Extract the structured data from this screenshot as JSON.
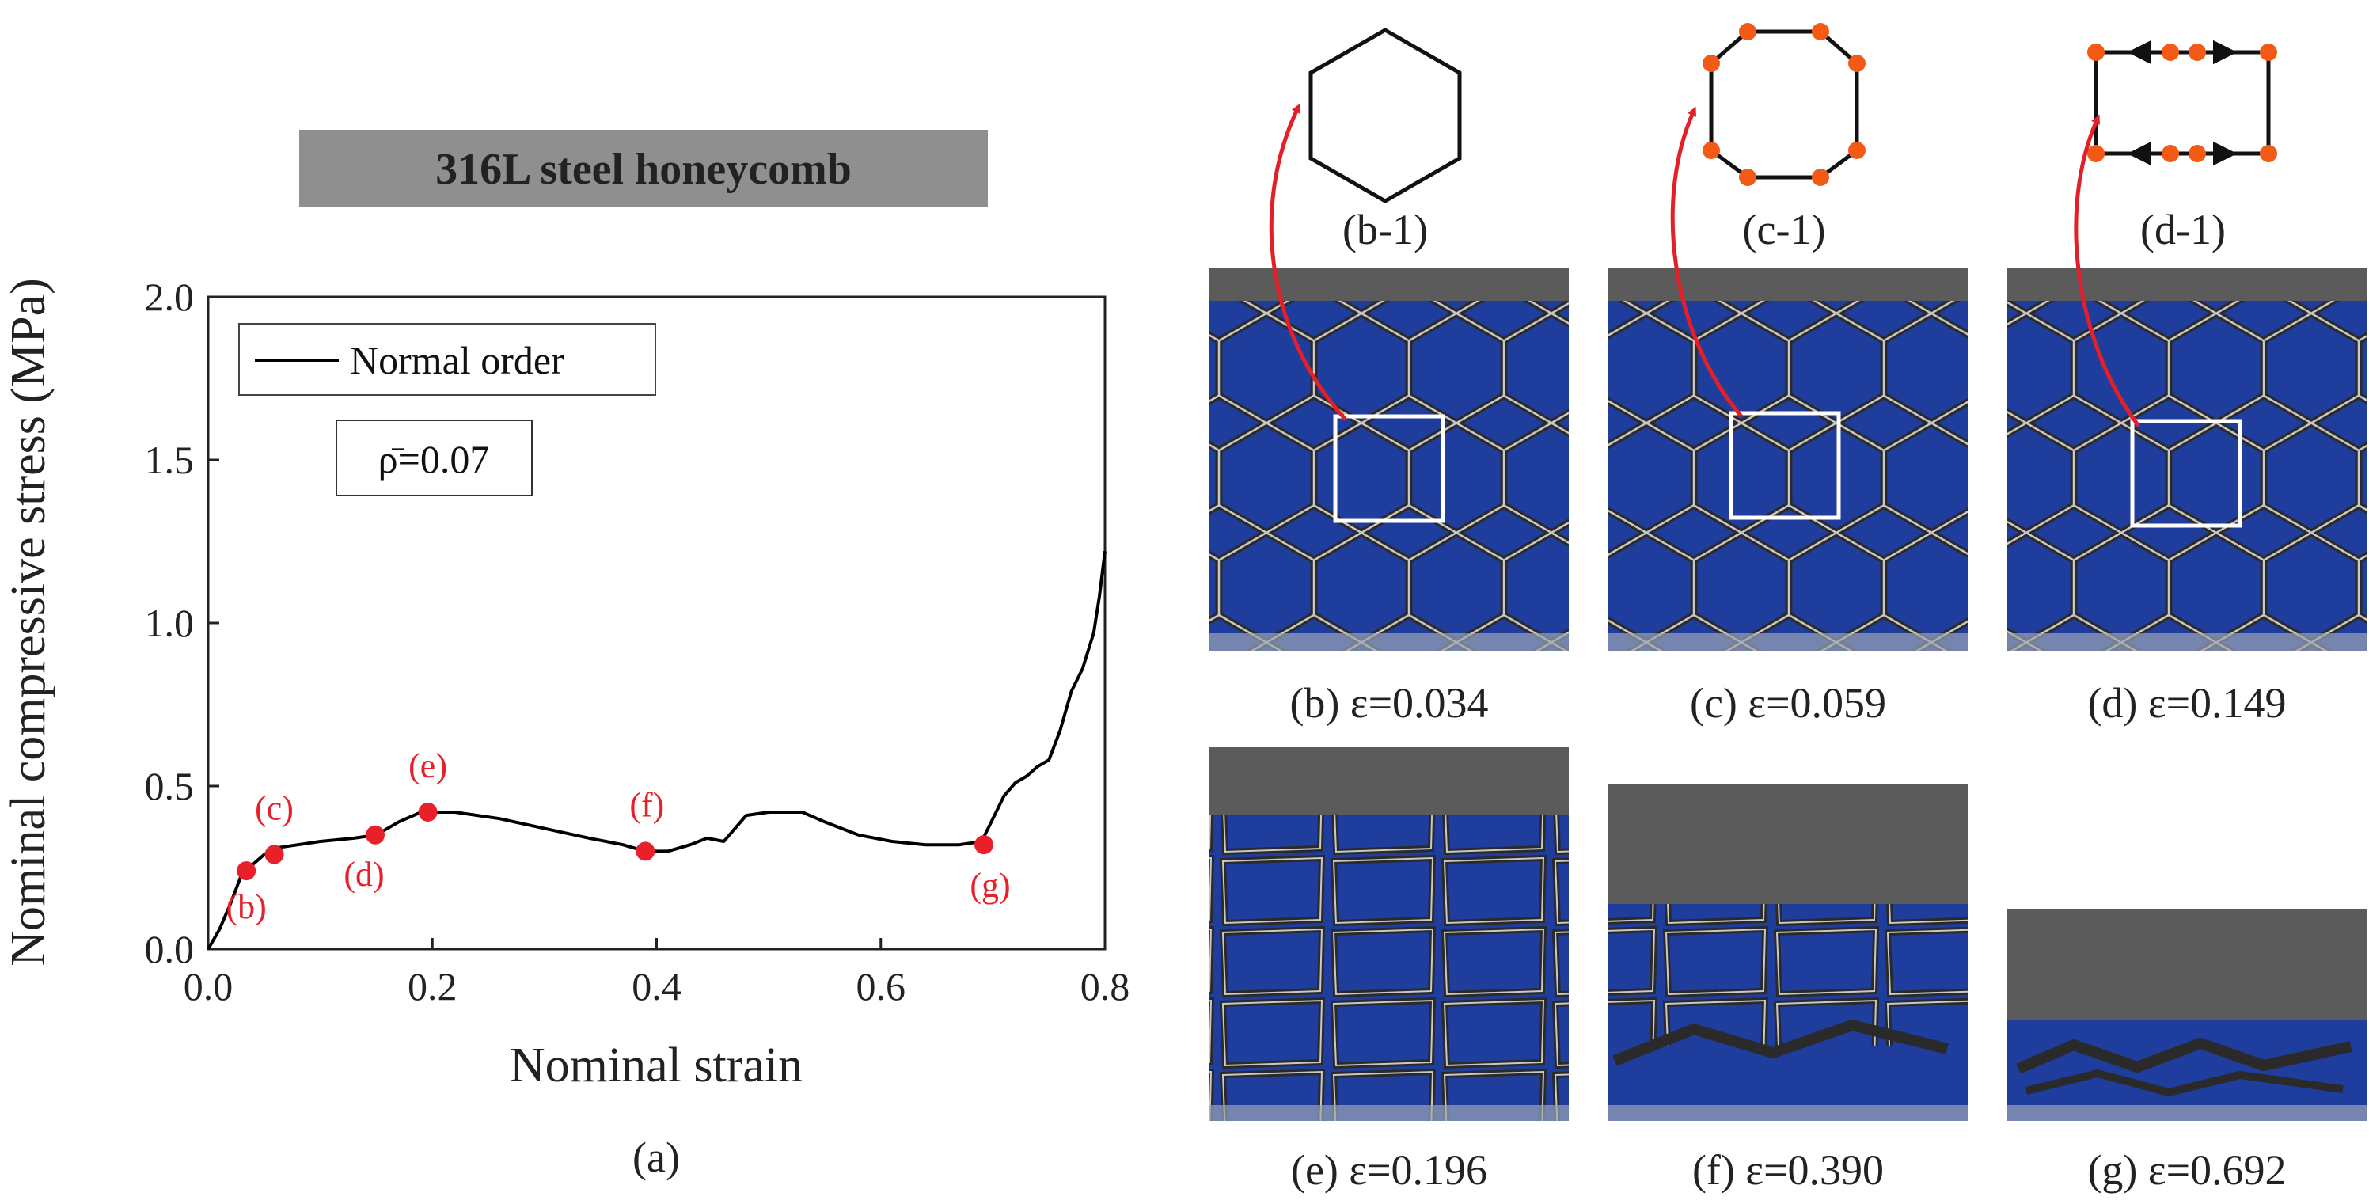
{
  "banner": {
    "text": "316L steel honeycomb"
  },
  "chart_data": {
    "type": "line",
    "title": "",
    "xlabel": "Nominal strain",
    "ylabel": "Nominal compressive stress (MPa)",
    "xlim": [
      0.0,
      0.8
    ],
    "ylim": [
      0.0,
      2.0
    ],
    "xticks": [
      "0.0",
      "0.2",
      "0.4",
      "0.6",
      "0.8"
    ],
    "yticks": [
      "0.0",
      "0.5",
      "1.0",
      "1.5",
      "2.0"
    ],
    "grid": false,
    "legend_position": "top-left",
    "series": [
      {
        "name": "Normal order",
        "color": "#000000",
        "x": [
          0.0,
          0.01,
          0.02,
          0.03,
          0.04,
          0.05,
          0.06,
          0.08,
          0.1,
          0.13,
          0.15,
          0.17,
          0.19,
          0.22,
          0.26,
          0.3,
          0.34,
          0.37,
          0.39,
          0.41,
          0.43,
          0.445,
          0.46,
          0.47,
          0.48,
          0.5,
          0.53,
          0.55,
          0.58,
          0.61,
          0.64,
          0.67,
          0.69,
          0.7,
          0.71,
          0.72,
          0.73,
          0.74,
          0.75,
          0.76,
          0.77,
          0.78,
          0.79,
          0.795,
          0.8
        ],
        "y": [
          0.0,
          0.06,
          0.14,
          0.23,
          0.26,
          0.29,
          0.31,
          0.32,
          0.33,
          0.34,
          0.35,
          0.39,
          0.42,
          0.42,
          0.4,
          0.37,
          0.34,
          0.32,
          0.3,
          0.3,
          0.32,
          0.34,
          0.33,
          0.37,
          0.41,
          0.42,
          0.42,
          0.39,
          0.35,
          0.33,
          0.32,
          0.32,
          0.33,
          0.4,
          0.47,
          0.51,
          0.53,
          0.56,
          0.58,
          0.67,
          0.79,
          0.86,
          0.97,
          1.08,
          1.22
        ]
      }
    ],
    "annotation": {
      "label": "ρ̄=0.07"
    },
    "marked_points": [
      {
        "label": "(b)",
        "x": 0.034,
        "y": 0.24
      },
      {
        "label": "(c)",
        "x": 0.059,
        "y": 0.29
      },
      {
        "label": "(d)",
        "x": 0.149,
        "y": 0.35
      },
      {
        "label": "(e)",
        "x": 0.196,
        "y": 0.42
      },
      {
        "label": "(f)",
        "x": 0.39,
        "y": 0.3
      },
      {
        "label": "(g)",
        "x": 0.692,
        "y": 0.32
      }
    ],
    "marker_color": "#e8202a"
  },
  "panel_a_caption": "(a)",
  "schematics": [
    {
      "caption": "(b-1)",
      "shape": "hexagon"
    },
    {
      "caption": "(c-1)",
      "shape": "flattened-hexagon"
    },
    {
      "caption": "(d-1)",
      "shape": "rectangle-with-arrows"
    }
  ],
  "photos": [
    {
      "caption": "(b) ε=0.034"
    },
    {
      "caption": "(c) ε=0.059"
    },
    {
      "caption": "(d) ε=0.149"
    },
    {
      "caption": "(e) ε=0.196"
    },
    {
      "caption": "(f) ε=0.390"
    },
    {
      "caption": "(g) ε=0.692"
    }
  ],
  "colors": {
    "banner_bg": "#8f8f8f",
    "photo_blue": "#1f3d9c",
    "platen_gray": "#5b5b5b",
    "hinge_orange": "#f25a16",
    "arrow_red": "#e3202a"
  }
}
